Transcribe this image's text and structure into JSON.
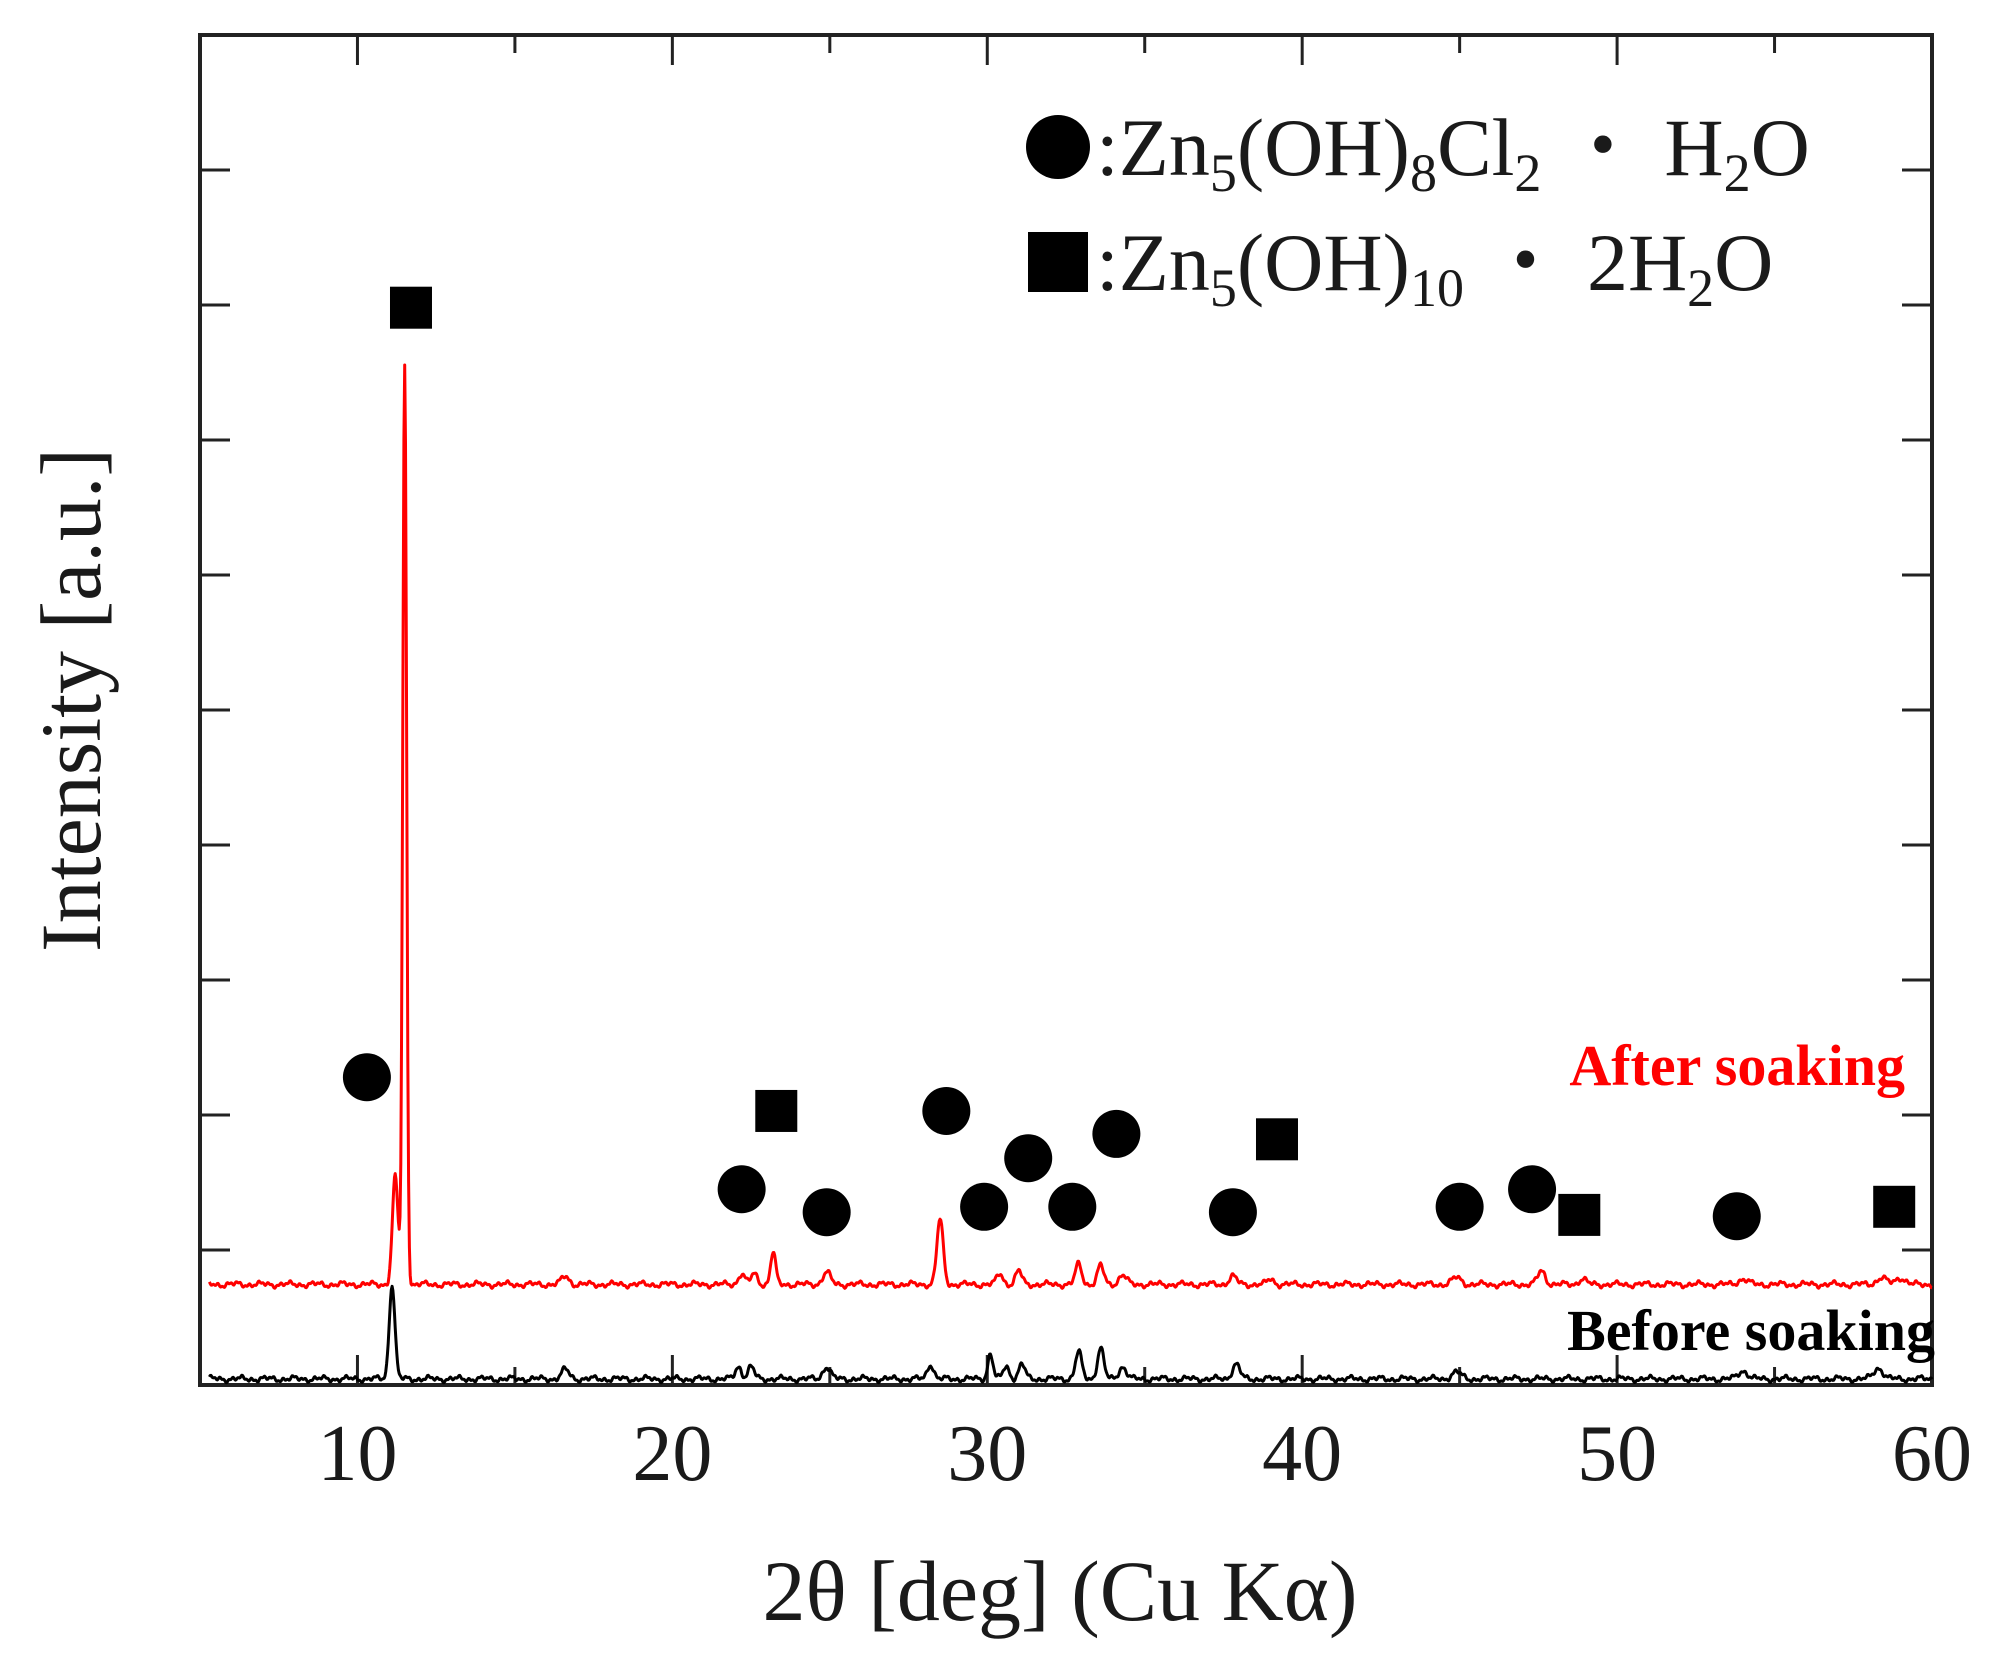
{
  "chart_data": {
    "type": "line",
    "title": "",
    "xlabel": "2θ [deg] (Cu Kα)",
    "ylabel": "Intensity [a.u.]",
    "xlim": [
      5,
      60
    ],
    "ylim": [
      0,
      100
    ],
    "x_ticks": [
      10,
      20,
      30,
      40,
      50,
      60
    ],
    "x_minor_step": 5,
    "y_tick_step": 10,
    "y_tick_labels": false,
    "grid": false,
    "legend": {
      "position": "top-right",
      "entries": [
        {
          "marker": "circle",
          "phase": "Zn5(OH)8Cl2・H2O",
          "parts": [
            {
              "t": ":Zn",
              "s": "n"
            },
            {
              "t": "5",
              "s": "sub"
            },
            {
              "t": "(OH)",
              "s": "n"
            },
            {
              "t": "8",
              "s": "sub"
            },
            {
              "t": "Cl",
              "s": "n"
            },
            {
              "t": "2",
              "s": "sub"
            },
            {
              "t": " ・ H",
              "s": "n"
            },
            {
              "t": "2",
              "s": "sub"
            },
            {
              "t": "O",
              "s": "n"
            }
          ]
        },
        {
          "marker": "square",
          "phase": "Zn5(OH)10・2H2O",
          "parts": [
            {
              "t": ":Zn",
              "s": "n"
            },
            {
              "t": "5",
              "s": "sub"
            },
            {
              "t": "(OH)",
              "s": "n"
            },
            {
              "t": "10",
              "s": "sub"
            },
            {
              "t": " ・ 2H",
              "s": "n"
            },
            {
              "t": "2",
              "s": "sub"
            },
            {
              "t": "O",
              "s": "n"
            }
          ]
        }
      ]
    },
    "series": [
      {
        "name": "After soaking",
        "color": "#ff0000",
        "label": "After soaking",
        "baseline": 7.0,
        "peaks": [
          {
            "x": 11.2,
            "h": 8,
            "w": 0.09
          },
          {
            "x": 11.5,
            "h": 68,
            "w": 0.06
          },
          {
            "x": 16.6,
            "h": 0.6,
            "w": 0.12
          },
          {
            "x": 22.2,
            "h": 0.8,
            "w": 0.1
          },
          {
            "x": 22.6,
            "h": 0.8,
            "w": 0.1
          },
          {
            "x": 23.2,
            "h": 2.4,
            "w": 0.08
          },
          {
            "x": 24.9,
            "h": 0.9,
            "w": 0.12
          },
          {
            "x": 28.5,
            "h": 4.8,
            "w": 0.1
          },
          {
            "x": 30.4,
            "h": 0.8,
            "w": 0.1
          },
          {
            "x": 31.0,
            "h": 1.0,
            "w": 0.1
          },
          {
            "x": 32.9,
            "h": 1.5,
            "w": 0.1
          },
          {
            "x": 33.6,
            "h": 1.4,
            "w": 0.1
          },
          {
            "x": 34.3,
            "h": 0.7,
            "w": 0.12
          },
          {
            "x": 37.8,
            "h": 0.6,
            "w": 0.12
          },
          {
            "x": 39.0,
            "h": 0.4,
            "w": 0.1
          },
          {
            "x": 44.9,
            "h": 0.5,
            "w": 0.15
          },
          {
            "x": 47.6,
            "h": 1.0,
            "w": 0.12
          },
          {
            "x": 48.9,
            "h": 0.4,
            "w": 0.12
          },
          {
            "x": 54.0,
            "h": 0.4,
            "w": 0.15
          },
          {
            "x": 58.4,
            "h": 0.5,
            "w": 0.15
          },
          {
            "x": 59.0,
            "h": 0.5,
            "w": 0.15
          }
        ]
      },
      {
        "name": "Before soaking",
        "color": "#000000",
        "label": "Before soaking",
        "baseline": 0.0,
        "peaks": [
          {
            "x": 11.1,
            "h": 7.0,
            "w": 0.09
          },
          {
            "x": 16.6,
            "h": 0.7,
            "w": 0.12
          },
          {
            "x": 22.1,
            "h": 0.9,
            "w": 0.1
          },
          {
            "x": 22.5,
            "h": 0.9,
            "w": 0.1
          },
          {
            "x": 24.9,
            "h": 0.9,
            "w": 0.12
          },
          {
            "x": 28.2,
            "h": 1.1,
            "w": 0.1
          },
          {
            "x": 30.1,
            "h": 1.9,
            "w": 0.08
          },
          {
            "x": 30.6,
            "h": 0.9,
            "w": 0.1
          },
          {
            "x": 31.1,
            "h": 1.1,
            "w": 0.1
          },
          {
            "x": 32.9,
            "h": 2.0,
            "w": 0.1
          },
          {
            "x": 33.6,
            "h": 2.3,
            "w": 0.1
          },
          {
            "x": 34.3,
            "h": 0.9,
            "w": 0.12
          },
          {
            "x": 37.9,
            "h": 1.1,
            "w": 0.12
          },
          {
            "x": 44.9,
            "h": 0.5,
            "w": 0.15
          },
          {
            "x": 54.0,
            "h": 0.6,
            "w": 0.15
          },
          {
            "x": 58.3,
            "h": 0.8,
            "w": 0.15
          }
        ]
      }
    ],
    "phase_markers": [
      {
        "type": "circle",
        "x": 10.3,
        "y": 22.8
      },
      {
        "type": "square",
        "x": 11.7,
        "y": 79.8
      },
      {
        "type": "circle",
        "x": 22.2,
        "y": 14.5
      },
      {
        "type": "square",
        "x": 23.3,
        "y": 20.3
      },
      {
        "type": "circle",
        "x": 24.9,
        "y": 12.8
      },
      {
        "type": "circle",
        "x": 28.7,
        "y": 20.3
      },
      {
        "type": "circle",
        "x": 29.9,
        "y": 13.2
      },
      {
        "type": "circle",
        "x": 31.3,
        "y": 16.8
      },
      {
        "type": "circle",
        "x": 32.7,
        "y": 13.2
      },
      {
        "type": "circle",
        "x": 34.1,
        "y": 18.6
      },
      {
        "type": "circle",
        "x": 37.8,
        "y": 12.8
      },
      {
        "type": "square",
        "x": 39.2,
        "y": 18.2
      },
      {
        "type": "circle",
        "x": 45.0,
        "y": 13.2
      },
      {
        "type": "circle",
        "x": 47.3,
        "y": 14.5
      },
      {
        "type": "square",
        "x": 48.8,
        "y": 12.6
      },
      {
        "type": "circle",
        "x": 53.8,
        "y": 12.5
      },
      {
        "type": "square",
        "x": 58.8,
        "y": 13.2
      }
    ]
  }
}
